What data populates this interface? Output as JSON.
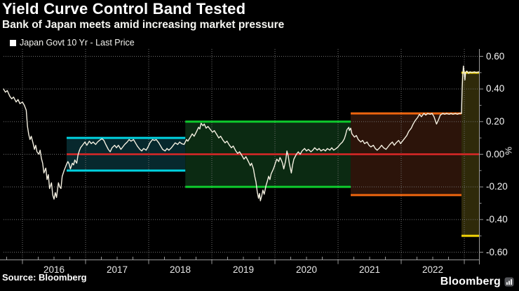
{
  "header": {
    "title": "Yield Curve Control Band Tested",
    "subtitle": "Bank of Japan meets amid increasing market pressure"
  },
  "legend": {
    "label": "Japan Govt 10 Yr - Last Price",
    "marker_color": "#ffffff"
  },
  "source": "Source: Bloomberg",
  "branding": {
    "logo": "Bloomberg"
  },
  "chart_data": {
    "type": "line",
    "title": "Yield Curve Control Band Tested",
    "series_name": "Japan Govt 10 Yr - Last Price",
    "line_color": "#f4f0e1",
    "x_axis": {
      "range": [
        2015.7,
        2023.233
      ],
      "tick_years": [
        2016,
        2017,
        2018,
        2019,
        2020,
        2021,
        2022
      ]
    },
    "y_axis": {
      "label": "%",
      "range": [
        -0.645,
        0.645
      ],
      "ticks": [
        0.6,
        0.4,
        0.2,
        0.0,
        -0.2,
        -0.4,
        -0.6
      ],
      "tick_labels": [
        "0.60",
        "0.40",
        "0.20",
        "0.00",
        "-0.20",
        "-0.40",
        "-0.60"
      ]
    },
    "grid": {
      "color": "#707070",
      "h_values": [
        0.6,
        0.4,
        0.2,
        0.0,
        -0.2,
        -0.4,
        -0.6
      ],
      "v_years": [
        2016,
        2017,
        2018,
        2019,
        2020,
        2021,
        2022,
        2023
      ]
    },
    "bands": [
      {
        "name": "plus-minus-0.10 band",
        "start": 2016.7,
        "end": 2018.58,
        "low": -0.1,
        "high": 0.1,
        "line_color": "#00d2e0",
        "fill_color": "#07282d"
      },
      {
        "name": "plus-minus-0.20 band",
        "start": 2018.58,
        "end": 2021.2,
        "low": -0.2,
        "high": 0.2,
        "line_color": "#0ecb2d",
        "fill_color": "#0b2a12"
      },
      {
        "name": "plus-minus-0.25 band",
        "start": 2021.2,
        "end": 2022.955,
        "low": -0.25,
        "high": 0.25,
        "line_color": "#ee650f",
        "fill_color": "#2c140a"
      },
      {
        "name": "plus-minus-0.50 band",
        "start": 2022.955,
        "end": 2023.233,
        "low": -0.5,
        "high": 0.5,
        "line_color": "#f3d508",
        "fill_color": "#2f2a0a"
      }
    ],
    "zero_line": {
      "value": 0.0,
      "start": 2016.7,
      "color": "#dc2828"
    },
    "series": [
      [
        2015.7,
        0.4
      ],
      [
        2015.73,
        0.38
      ],
      [
        2015.76,
        0.39
      ],
      [
        2015.8,
        0.355
      ],
      [
        2015.83,
        0.34
      ],
      [
        2015.86,
        0.35
      ],
      [
        2015.9,
        0.32
      ],
      [
        2015.93,
        0.335
      ],
      [
        2015.96,
        0.31
      ],
      [
        2016.0,
        0.32
      ],
      [
        2016.03,
        0.3
      ],
      [
        2016.06,
        0.27
      ],
      [
        2016.08,
        0.17
      ],
      [
        2016.1,
        0.12
      ],
      [
        2016.12,
        0.09
      ],
      [
        2016.14,
        0.11
      ],
      [
        2016.17,
        0.065
      ],
      [
        2016.19,
        0.03
      ],
      [
        2016.21,
        0.055
      ],
      [
        2016.23,
        0.015
      ],
      [
        2016.26,
        0.0
      ],
      [
        2016.28,
        0.025
      ],
      [
        2016.3,
        -0.025
      ],
      [
        2016.32,
        -0.055
      ],
      [
        2016.34,
        -0.115
      ],
      [
        2016.37,
        -0.085
      ],
      [
        2016.39,
        -0.155
      ],
      [
        2016.41,
        -0.125
      ],
      [
        2016.43,
        -0.21
      ],
      [
        2016.46,
        -0.175
      ],
      [
        2016.48,
        -0.25
      ],
      [
        2016.5,
        -0.275
      ],
      [
        2016.52,
        -0.235
      ],
      [
        2016.54,
        -0.265
      ],
      [
        2016.57,
        -0.175
      ],
      [
        2016.59,
        -0.2
      ],
      [
        2016.61,
        -0.21
      ],
      [
        2016.63,
        -0.135
      ],
      [
        2016.66,
        -0.1
      ],
      [
        2016.68,
        -0.08
      ],
      [
        2016.7,
        -0.06
      ],
      [
        2016.72,
        -0.045
      ],
      [
        2016.74,
        -0.06
      ],
      [
        2016.76,
        -0.09
      ],
      [
        2016.79,
        -0.055
      ],
      [
        2016.81,
        -0.065
      ],
      [
        2016.83,
        -0.035
      ],
      [
        2016.86,
        -0.055
      ],
      [
        2016.88,
        -0.005
      ],
      [
        2016.9,
        0.02
      ],
      [
        2016.92,
        0.04
      ],
      [
        2016.96,
        0.06
      ],
      [
        2016.99,
        0.075
      ],
      [
        2017.02,
        0.055
      ],
      [
        2017.06,
        0.08
      ],
      [
        2017.09,
        0.065
      ],
      [
        2017.12,
        0.075
      ],
      [
        2017.16,
        0.06
      ],
      [
        2017.19,
        0.075
      ],
      [
        2017.22,
        0.085
      ],
      [
        2017.26,
        0.095
      ],
      [
        2017.29,
        0.085
      ],
      [
        2017.32,
        0.06
      ],
      [
        2017.36,
        0.03
      ],
      [
        2017.39,
        0.015
      ],
      [
        2017.42,
        0.04
      ],
      [
        2017.46,
        0.055
      ],
      [
        2017.49,
        0.04
      ],
      [
        2017.52,
        0.055
      ],
      [
        2017.56,
        0.03
      ],
      [
        2017.59,
        0.045
      ],
      [
        2017.62,
        0.06
      ],
      [
        2017.66,
        0.075
      ],
      [
        2017.69,
        0.09
      ],
      [
        2017.72,
        0.08
      ],
      [
        2017.76,
        0.09
      ],
      [
        2017.79,
        0.07
      ],
      [
        2017.82,
        0.05
      ],
      [
        2017.86,
        0.03
      ],
      [
        2017.89,
        0.02
      ],
      [
        2017.92,
        0.035
      ],
      [
        2017.96,
        0.025
      ],
      [
        2017.99,
        0.045
      ],
      [
        2018.02,
        0.07
      ],
      [
        2018.06,
        0.09
      ],
      [
        2018.09,
        0.085
      ],
      [
        2018.12,
        0.09
      ],
      [
        2018.16,
        0.07
      ],
      [
        2018.19,
        0.05
      ],
      [
        2018.22,
        0.03
      ],
      [
        2018.26,
        0.02
      ],
      [
        2018.29,
        0.035
      ],
      [
        2018.32,
        0.025
      ],
      [
        2018.36,
        0.04
      ],
      [
        2018.39,
        0.055
      ],
      [
        2018.42,
        0.07
      ],
      [
        2018.46,
        0.06
      ],
      [
        2018.49,
        0.075
      ],
      [
        2018.52,
        0.065
      ],
      [
        2018.56,
        0.06
      ],
      [
        2018.58,
        0.075
      ],
      [
        2018.6,
        0.09
      ],
      [
        2018.62,
        0.08
      ],
      [
        2018.66,
        0.105
      ],
      [
        2018.69,
        0.125
      ],
      [
        2018.72,
        0.11
      ],
      [
        2018.76,
        0.14
      ],
      [
        2018.79,
        0.165
      ],
      [
        2018.81,
        0.155
      ],
      [
        2018.83,
        0.19
      ],
      [
        2018.86,
        0.175
      ],
      [
        2018.88,
        0.185
      ],
      [
        2018.91,
        0.16
      ],
      [
        2018.94,
        0.17
      ],
      [
        2018.98,
        0.15
      ],
      [
        2019.01,
        0.135
      ],
      [
        2019.04,
        0.145
      ],
      [
        2019.08,
        0.12
      ],
      [
        2019.11,
        0.1
      ],
      [
        2019.14,
        0.11
      ],
      [
        2019.18,
        0.085
      ],
      [
        2019.21,
        0.07
      ],
      [
        2019.24,
        0.08
      ],
      [
        2019.28,
        0.055
      ],
      [
        2019.31,
        0.04
      ],
      [
        2019.34,
        0.05
      ],
      [
        2019.38,
        0.02
      ],
      [
        2019.41,
        0.005
      ],
      [
        2019.44,
        0.015
      ],
      [
        2019.48,
        -0.01
      ],
      [
        2019.51,
        -0.03
      ],
      [
        2019.54,
        -0.015
      ],
      [
        2019.58,
        -0.045
      ],
      [
        2019.61,
        -0.07
      ],
      [
        2019.63,
        -0.055
      ],
      [
        2019.66,
        -0.09
      ],
      [
        2019.68,
        -0.135
      ],
      [
        2019.7,
        -0.17
      ],
      [
        2019.72,
        -0.23
      ],
      [
        2019.74,
        -0.27
      ],
      [
        2019.755,
        -0.24
      ],
      [
        2019.77,
        -0.285
      ],
      [
        2019.79,
        -0.255
      ],
      [
        2019.81,
        -0.22
      ],
      [
        2019.83,
        -0.245
      ],
      [
        2019.86,
        -0.19
      ],
      [
        2019.88,
        -0.165
      ],
      [
        2019.9,
        -0.135
      ],
      [
        2019.92,
        -0.155
      ],
      [
        2019.94,
        -0.12
      ],
      [
        2019.97,
        -0.095
      ],
      [
        2019.99,
        -0.075
      ],
      [
        2020.01,
        -0.05
      ],
      [
        2020.03,
        -0.03
      ],
      [
        2020.06,
        -0.045
      ],
      [
        2020.08,
        -0.02
      ],
      [
        2020.1,
        -0.035
      ],
      [
        2020.12,
        -0.055
      ],
      [
        2020.14,
        -0.09
      ],
      [
        2020.17,
        -0.04
      ],
      [
        2020.19,
        0.02
      ],
      [
        2020.21,
        -0.01
      ],
      [
        2020.23,
        -0.06
      ],
      [
        2020.26,
        -0.115
      ],
      [
        2020.28,
        -0.065
      ],
      [
        2020.3,
        -0.03
      ],
      [
        2020.32,
        -0.015
      ],
      [
        2020.34,
        0.0
      ],
      [
        2020.37,
        0.015
      ],
      [
        2020.4,
        0.0
      ],
      [
        2020.43,
        0.02
      ],
      [
        2020.47,
        0.035
      ],
      [
        2020.5,
        0.02
      ],
      [
        2020.53,
        0.03
      ],
      [
        2020.57,
        0.015
      ],
      [
        2020.6,
        0.025
      ],
      [
        2020.63,
        0.04
      ],
      [
        2020.67,
        0.025
      ],
      [
        2020.7,
        0.035
      ],
      [
        2020.73,
        0.02
      ],
      [
        2020.77,
        0.03
      ],
      [
        2020.8,
        0.02
      ],
      [
        2020.83,
        0.035
      ],
      [
        2020.87,
        0.025
      ],
      [
        2020.9,
        0.04
      ],
      [
        2020.93,
        0.025
      ],
      [
        2020.97,
        0.035
      ],
      [
        2021.0,
        0.045
      ],
      [
        2021.03,
        0.06
      ],
      [
        2021.07,
        0.075
      ],
      [
        2021.1,
        0.095
      ],
      [
        2021.12,
        0.12
      ],
      [
        2021.14,
        0.15
      ],
      [
        2021.17,
        0.165
      ],
      [
        2021.18,
        0.145
      ],
      [
        2021.2,
        0.16
      ],
      [
        2021.22,
        0.125
      ],
      [
        2021.26,
        0.105
      ],
      [
        2021.29,
        0.115
      ],
      [
        2021.32,
        0.09
      ],
      [
        2021.36,
        0.075
      ],
      [
        2021.39,
        0.085
      ],
      [
        2021.42,
        0.065
      ],
      [
        2021.46,
        0.075
      ],
      [
        2021.49,
        0.055
      ],
      [
        2021.52,
        0.045
      ],
      [
        2021.56,
        0.055
      ],
      [
        2021.59,
        0.035
      ],
      [
        2021.62,
        0.025
      ],
      [
        2021.66,
        0.04
      ],
      [
        2021.69,
        0.055
      ],
      [
        2021.72,
        0.04
      ],
      [
        2021.76,
        0.03
      ],
      [
        2021.79,
        0.045
      ],
      [
        2021.82,
        0.06
      ],
      [
        2021.86,
        0.075
      ],
      [
        2021.89,
        0.055
      ],
      [
        2021.92,
        0.07
      ],
      [
        2021.96,
        0.085
      ],
      [
        2021.99,
        0.065
      ],
      [
        2022.02,
        0.08
      ],
      [
        2022.06,
        0.1
      ],
      [
        2022.09,
        0.115
      ],
      [
        2022.12,
        0.14
      ],
      [
        2022.16,
        0.16
      ],
      [
        2022.19,
        0.185
      ],
      [
        2022.22,
        0.205
      ],
      [
        2022.26,
        0.225
      ],
      [
        2022.29,
        0.245
      ],
      [
        2022.32,
        0.23
      ],
      [
        2022.36,
        0.25
      ],
      [
        2022.39,
        0.24
      ],
      [
        2022.42,
        0.25
      ],
      [
        2022.46,
        0.245
      ],
      [
        2022.49,
        0.25
      ],
      [
        2022.52,
        0.23
      ],
      [
        2022.56,
        0.185
      ],
      [
        2022.59,
        0.21
      ],
      [
        2022.62,
        0.24
      ],
      [
        2022.66,
        0.25
      ],
      [
        2022.69,
        0.245
      ],
      [
        2022.72,
        0.25
      ],
      [
        2022.76,
        0.245
      ],
      [
        2022.79,
        0.25
      ],
      [
        2022.82,
        0.245
      ],
      [
        2022.86,
        0.25
      ],
      [
        2022.89,
        0.245
      ],
      [
        2022.92,
        0.25
      ],
      [
        2022.955,
        0.25
      ],
      [
        2022.965,
        0.4
      ],
      [
        2022.975,
        0.48
      ],
      [
        2022.985,
        0.54
      ],
      [
        2023.0,
        0.5
      ],
      [
        2023.01,
        0.455
      ],
      [
        2023.02,
        0.5
      ],
      [
        2023.04,
        0.51
      ],
      [
        2023.07,
        0.495
      ],
      [
        2023.09,
        0.505
      ],
      [
        2023.12,
        0.5
      ],
      [
        2023.16,
        0.505
      ],
      [
        2023.19,
        0.5
      ],
      [
        2023.23,
        0.505
      ]
    ]
  }
}
